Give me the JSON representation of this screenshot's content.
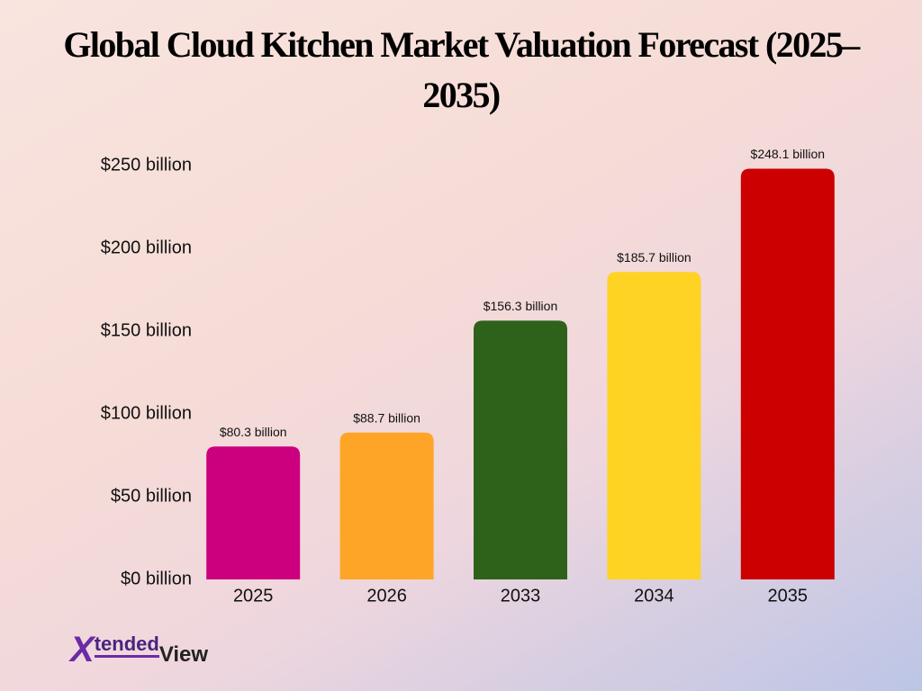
{
  "chart_data": {
    "type": "bar",
    "title": "Global Cloud Kitchen Market Valuation Forecast (2025–2035)",
    "categories": [
      "2025",
      "2026",
      "2033",
      "2034",
      "2035"
    ],
    "values": [
      80.3,
      88.7,
      156.3,
      185.7,
      248.1
    ],
    "value_labels": [
      "$80.3 billion",
      "$88.7 billion",
      "$156.3 billion",
      "$185.7 billion",
      "$248.1 billion"
    ],
    "colors": [
      "#cc007f",
      "#fea527",
      "#2e621b",
      "#fed324",
      "#cc0000"
    ],
    "ylim": [
      0,
      250
    ],
    "yticks": [
      {
        "value": 0,
        "label": "$0 billion"
      },
      {
        "value": 50,
        "label": "$50 billion"
      },
      {
        "value": 100,
        "label": "$100 billion"
      },
      {
        "value": 150,
        "label": "$150 billion"
      },
      {
        "value": 200,
        "label": "$200 billion"
      },
      {
        "value": 250,
        "label": "$250 billion"
      }
    ],
    "grid": false
  },
  "brand": {
    "initial": "X",
    "name": "tended",
    "suffix": "View"
  }
}
